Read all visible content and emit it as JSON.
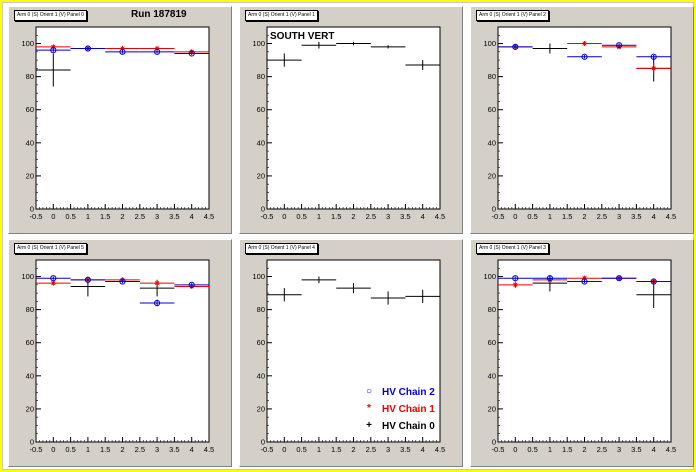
{
  "colors": {
    "chain2": "#0000cc",
    "chain1": "#ee0000",
    "chain0": "#000000",
    "page_background": "#ffff00",
    "pad_background": "#d4d0c8",
    "plot_background": "#ffffff"
  },
  "labels": {
    "run": "Run 187819",
    "south_vert": "SOUTH VERT"
  },
  "legend": {
    "chain2_label": "HV Chain 2",
    "chain1_label": "HV Chain 1",
    "chain0_label": "HV Chain 0"
  },
  "chart_data": [
    {
      "type": "scatter",
      "title": "Arm 0 (S) Orient 1 (V) Panel 0",
      "xlim": [
        -0.5,
        4.5
      ],
      "ylim": [
        0,
        110
      ],
      "x_ticks": [
        "-0.5",
        "0",
        "0.5",
        "1",
        "1.5",
        "2",
        "2.5",
        "3",
        "3.5",
        "4",
        "4.5"
      ],
      "y_ticks": [
        "0",
        "20",
        "40",
        "60",
        "80",
        "100"
      ],
      "series": [
        {
          "name": "HV Chain 2",
          "x": [
            0,
            1,
            2,
            3,
            4
          ],
          "y": [
            96,
            97,
            95,
            95,
            94
          ],
          "yerr": [
            1,
            1,
            1,
            1,
            1
          ],
          "xhalf": [
            0.5,
            0.5,
            0.5,
            0.5,
            0.5
          ]
        },
        {
          "name": "HV Chain 1",
          "x": [
            0,
            1,
            2,
            3,
            4
          ],
          "y": [
            98,
            97,
            97,
            97,
            95
          ],
          "yerr": [
            1,
            1,
            1,
            1,
            1
          ],
          "xhalf": [
            0.5,
            0.5,
            0.5,
            0.5,
            0.5
          ]
        },
        {
          "name": "HV Chain 0",
          "x": [
            0
          ],
          "y": [
            84
          ],
          "yerr": [
            10
          ],
          "xhalf": [
            0.5
          ]
        }
      ]
    },
    {
      "type": "scatter",
      "title": "Arm 0 (S) Orient 1 (V) Panel 1",
      "xlim": [
        -0.5,
        4.5
      ],
      "ylim": [
        0,
        110
      ],
      "x_ticks": [
        "-0.5",
        "0",
        "0.5",
        "1",
        "1.5",
        "2",
        "2.5",
        "3",
        "3.5",
        "4",
        "4.5"
      ],
      "y_ticks": [
        "0",
        "20",
        "40",
        "60",
        "80",
        "100"
      ],
      "series": [
        {
          "name": "HV Chain 0",
          "x": [
            0,
            1,
            2,
            3,
            4
          ],
          "y": [
            90,
            99,
            100,
            98,
            87
          ],
          "yerr": [
            4,
            2,
            1,
            1,
            3
          ],
          "xhalf": [
            0.5,
            0.5,
            0.5,
            0.5,
            0.5
          ]
        }
      ]
    },
    {
      "type": "scatter",
      "title": "Arm 0 (S) Orient 1 (V) Panel 2",
      "xlim": [
        -0.5,
        4.5
      ],
      "ylim": [
        0,
        110
      ],
      "x_ticks": [
        "-0.5",
        "0",
        "0.5",
        "1",
        "1.5",
        "2",
        "2.5",
        "3",
        "3.5",
        "4",
        "4.5"
      ],
      "y_ticks": [
        "0",
        "20",
        "40",
        "60",
        "80",
        "100"
      ],
      "series": [
        {
          "name": "HV Chain 2",
          "x": [
            0,
            2,
            3,
            4
          ],
          "y": [
            98,
            92,
            99,
            92
          ],
          "yerr": [
            1,
            1,
            1,
            1
          ],
          "xhalf": [
            0.5,
            0.5,
            0.5,
            0.5
          ]
        },
        {
          "name": "HV Chain 1",
          "x": [
            0,
            2,
            3,
            4
          ],
          "y": [
            98,
            100,
            98,
            85
          ],
          "yerr": [
            1,
            1,
            1,
            3
          ],
          "xhalf": [
            0.5,
            0.5,
            0.5,
            0.5
          ]
        },
        {
          "name": "HV Chain 0",
          "x": [
            1,
            4
          ],
          "y": [
            97,
            85
          ],
          "yerr": [
            3,
            8
          ],
          "xhalf": [
            0.5,
            0.5
          ]
        }
      ]
    },
    {
      "type": "scatter",
      "title": "Arm 0 (S) Orient 1 (V) Panel 5",
      "xlim": [
        -0.5,
        4.5
      ],
      "ylim": [
        0,
        110
      ],
      "x_ticks": [
        "-0.5",
        "0",
        "0.5",
        "1",
        "1.5",
        "2",
        "2.5",
        "3",
        "3.5",
        "4",
        "4.5"
      ],
      "y_ticks": [
        "0",
        "20",
        "40",
        "60",
        "80",
        "100"
      ],
      "series": [
        {
          "name": "HV Chain 2",
          "x": [
            0,
            1,
            2,
            3,
            4
          ],
          "y": [
            99,
            98,
            97,
            84,
            95
          ],
          "yerr": [
            1,
            1,
            1,
            2,
            1
          ],
          "xhalf": [
            0.5,
            0.5,
            0.5,
            0.5,
            0.5
          ]
        },
        {
          "name": "HV Chain 1",
          "x": [
            0,
            1,
            2,
            3,
            4
          ],
          "y": [
            96,
            98,
            98,
            96,
            94
          ],
          "yerr": [
            1,
            1,
            1,
            2,
            1
          ],
          "xhalf": [
            0.5,
            0.5,
            0.5,
            0.5,
            0.5
          ]
        },
        {
          "name": "HV Chain 0",
          "x": [
            1,
            3
          ],
          "y": [
            94,
            93
          ],
          "yerr": [
            6,
            5
          ],
          "xhalf": [
            0.5,
            0.5
          ]
        }
      ]
    },
    {
      "type": "scatter",
      "title": "Arm 0 (S) Orient 1 (V) Panel 4",
      "xlim": [
        -0.5,
        4.5
      ],
      "ylim": [
        0,
        110
      ],
      "x_ticks": [
        "-0.5",
        "0",
        "0.5",
        "1",
        "1.5",
        "2",
        "2.5",
        "3",
        "3.5",
        "4",
        "4.5"
      ],
      "y_ticks": [
        "0",
        "20",
        "40",
        "60",
        "80",
        "100"
      ],
      "series": [
        {
          "name": "HV Chain 0",
          "x": [
            0,
            1,
            2,
            3,
            4
          ],
          "y": [
            89,
            98,
            93,
            87,
            88
          ],
          "yerr": [
            4,
            2,
            3,
            4,
            4
          ],
          "xhalf": [
            0.5,
            0.5,
            0.5,
            0.5,
            0.5
          ]
        }
      ]
    },
    {
      "type": "scatter",
      "title": "Arm 0 (S) Orient 1 (V) Panel 3",
      "xlim": [
        -0.5,
        4.5
      ],
      "ylim": [
        0,
        110
      ],
      "x_ticks": [
        "-0.5",
        "0",
        "0.5",
        "1",
        "1.5",
        "2",
        "2.5",
        "3",
        "3.5",
        "4",
        "4.5"
      ],
      "y_ticks": [
        "0",
        "20",
        "40",
        "60",
        "80",
        "100"
      ],
      "series": [
        {
          "name": "HV Chain 2",
          "x": [
            0,
            1,
            2,
            3,
            4
          ],
          "y": [
            99,
            99,
            97,
            99,
            97
          ],
          "yerr": [
            1,
            1,
            1,
            1,
            1
          ],
          "xhalf": [
            0.5,
            0.5,
            0.5,
            0.5,
            0.5
          ]
        },
        {
          "name": "HV Chain 1",
          "x": [
            0,
            1,
            2,
            3,
            4
          ],
          "y": [
            95,
            98,
            99,
            99,
            97
          ],
          "yerr": [
            2,
            1,
            1,
            1,
            1
          ],
          "xhalf": [
            0.5,
            0.5,
            0.5,
            0.5,
            0.5
          ]
        },
        {
          "name": "HV Chain 0",
          "x": [
            1,
            4
          ],
          "y": [
            96,
            89
          ],
          "yerr": [
            5,
            8
          ],
          "xhalf": [
            0.5,
            0.5
          ]
        }
      ]
    }
  ]
}
